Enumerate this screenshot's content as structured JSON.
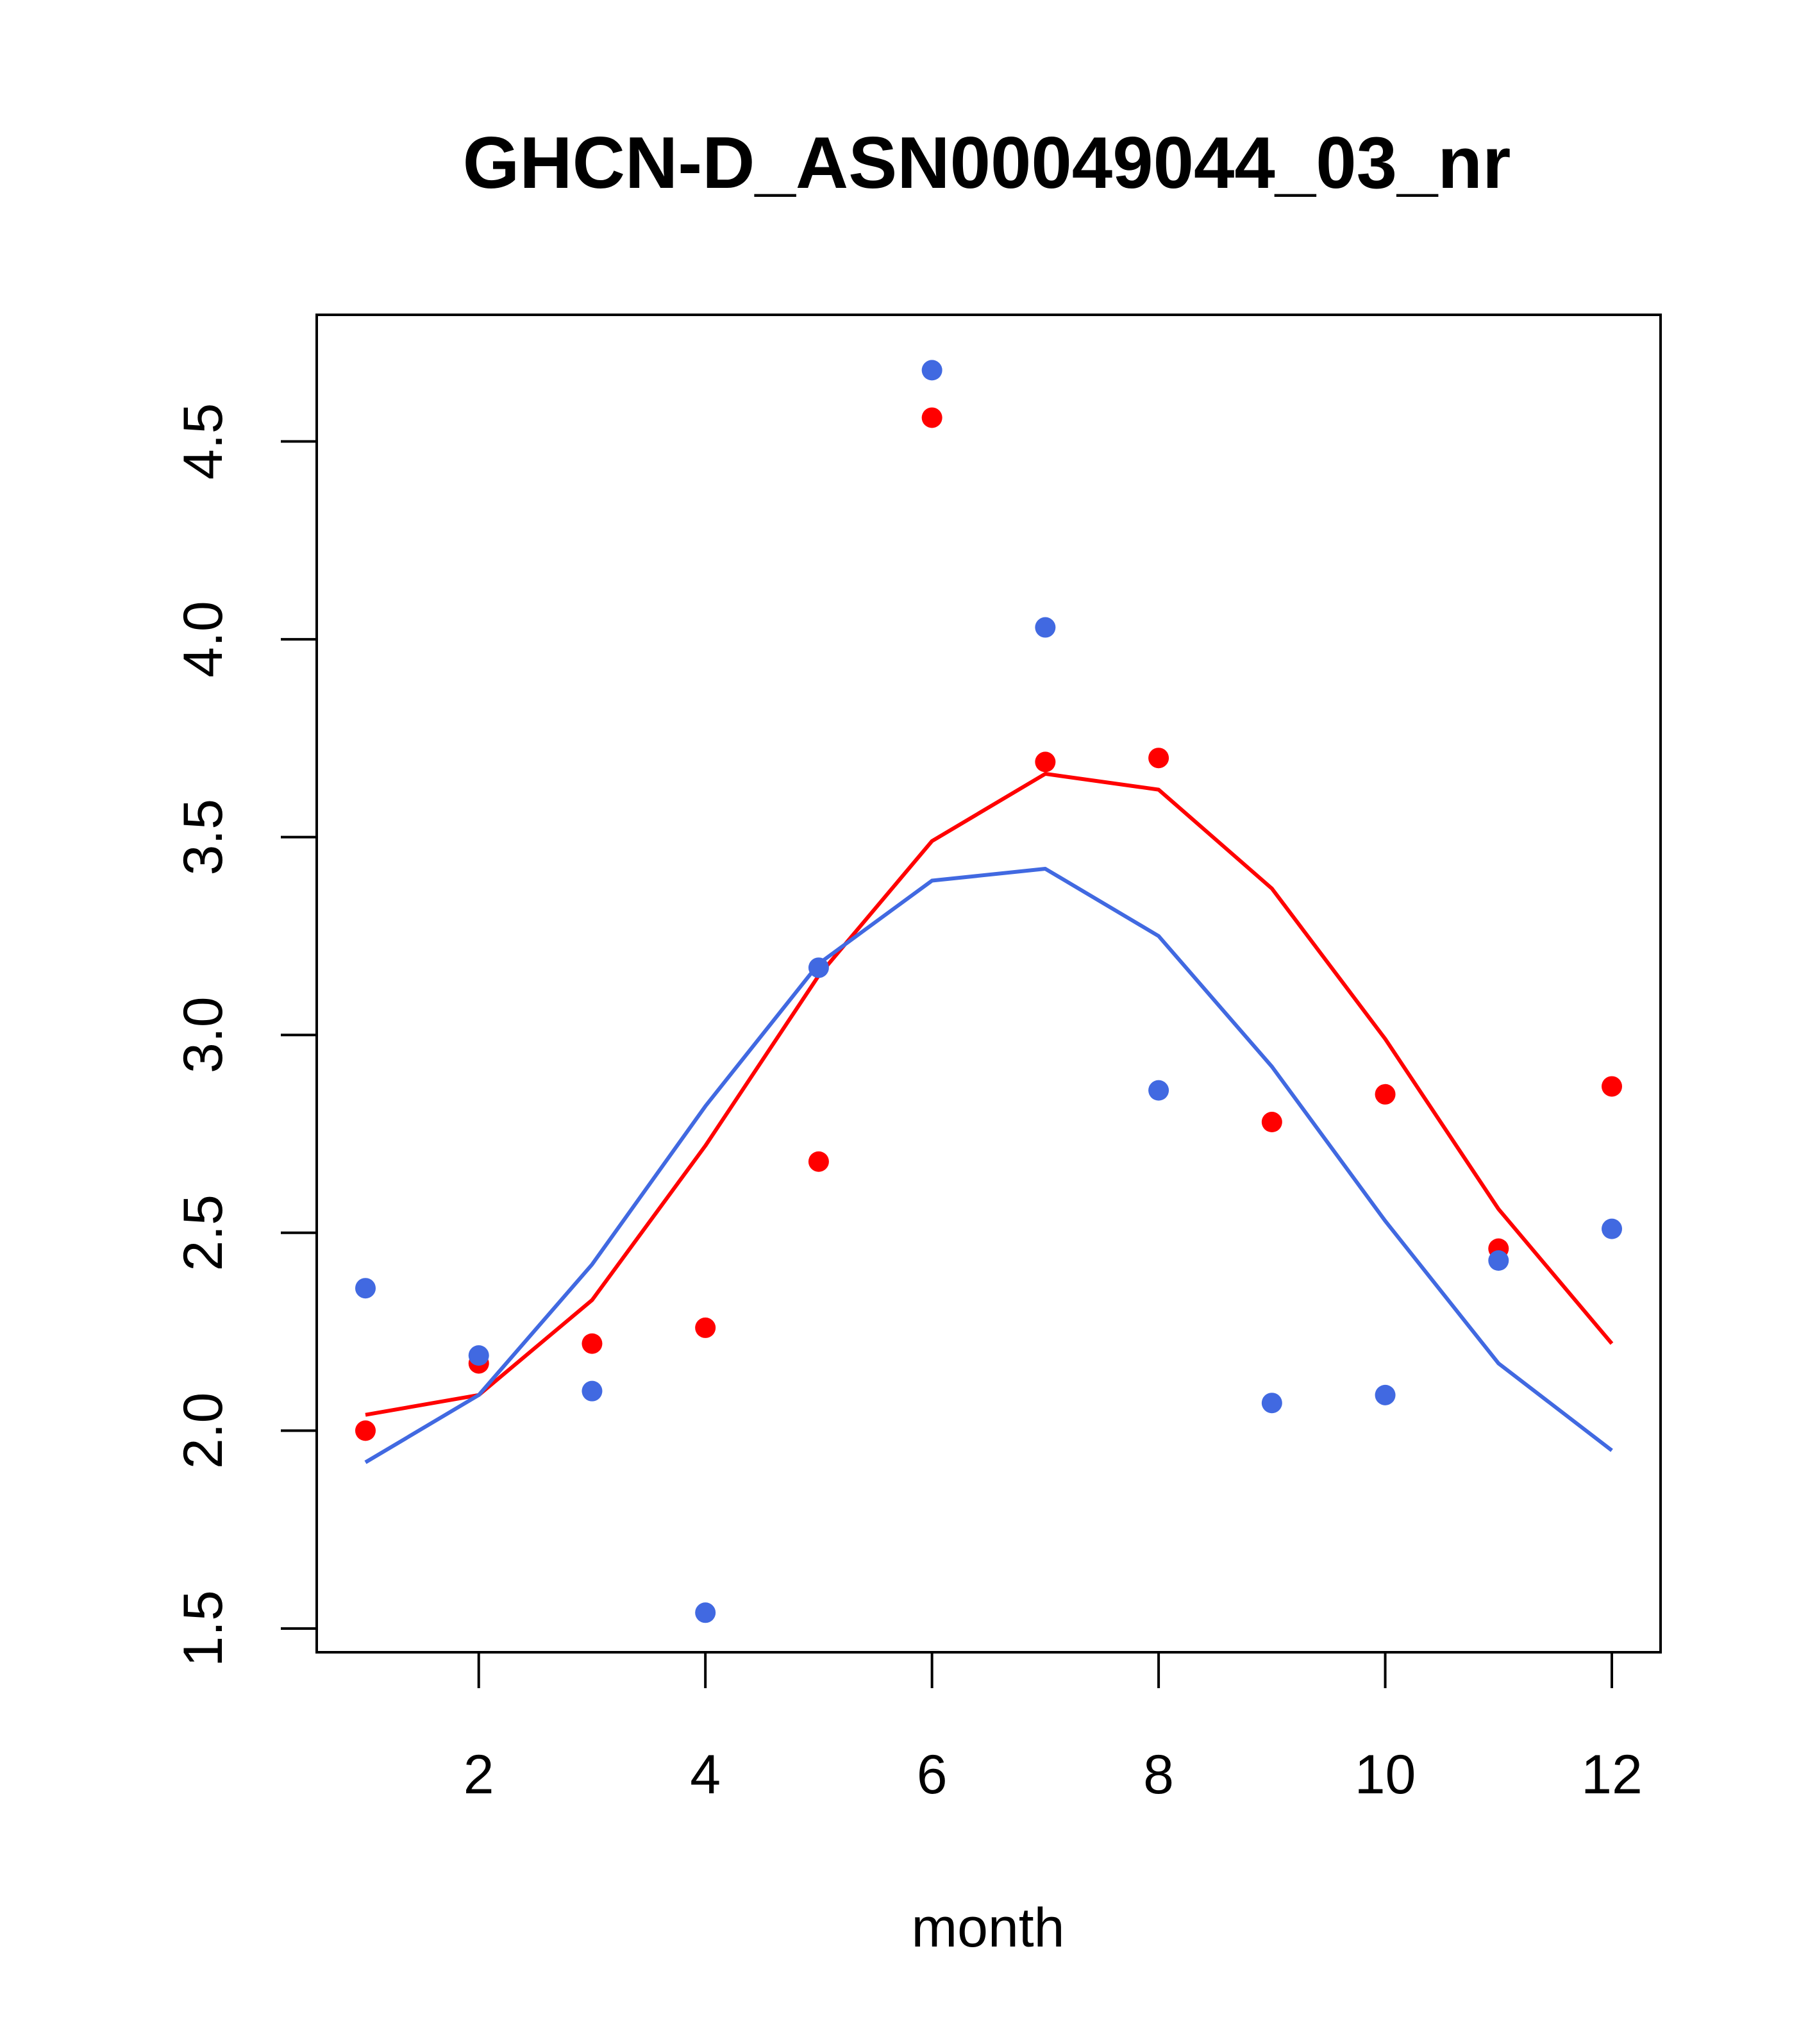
{
  "chart_data": {
    "type": "scatter",
    "title": "GHCN-D_ASN00049044_03_nr",
    "xlabel": "month",
    "ylabel": "",
    "xlim": [
      0.57,
      12.43
    ],
    "ylim": [
      1.44,
      4.82
    ],
    "x_ticks": [
      2,
      4,
      6,
      8,
      10,
      12
    ],
    "y_ticks": [
      1.5,
      2.0,
      2.5,
      3.0,
      3.5,
      4.0,
      4.5
    ],
    "x_tick_labels": [
      "2",
      "4",
      "6",
      "8",
      "10",
      "12"
    ],
    "y_tick_labels": [
      "1.5",
      "2.0",
      "2.5",
      "3.0",
      "3.5",
      "4.0",
      "4.5"
    ],
    "grid": false,
    "legend": "none",
    "x": [
      1,
      2,
      3,
      4,
      5,
      6,
      7,
      8,
      9,
      10,
      11,
      12
    ],
    "series": [
      {
        "color": "#ff0000",
        "points": [
          2.0,
          2.17,
          2.22,
          2.26,
          2.68,
          4.56,
          3.69,
          3.7,
          2.78,
          2.85,
          2.46,
          2.87
        ],
        "line": [
          2.04,
          2.09,
          2.33,
          2.72,
          3.15,
          3.49,
          3.66,
          3.62,
          3.37,
          2.99,
          2.56,
          2.22
        ]
      },
      {
        "color": "#4169e1",
        "points": [
          2.36,
          2.19,
          2.1,
          1.54,
          3.17,
          4.68,
          4.03,
          2.86,
          2.07,
          2.09,
          2.43,
          2.51
        ],
        "line": [
          1.92,
          2.09,
          2.42,
          2.82,
          3.18,
          3.39,
          3.42,
          3.25,
          2.92,
          2.53,
          2.17,
          1.95
        ]
      }
    ]
  }
}
